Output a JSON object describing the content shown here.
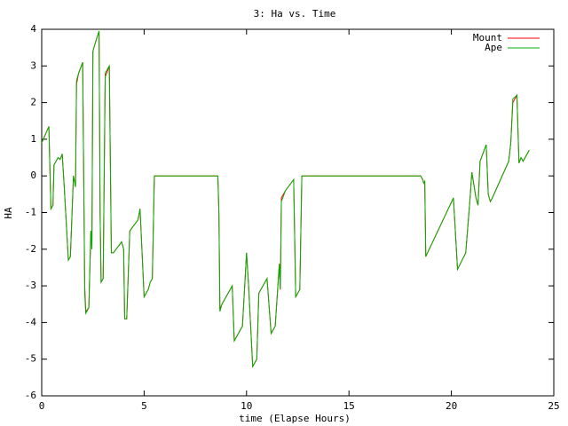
{
  "chart_data": {
    "type": "line",
    "title": "3: Ha vs. Time",
    "x_label": "time (Elapse Hours)",
    "y_label": "HA",
    "x": [
      0,
      0.35,
      0.4,
      0.45,
      0.55,
      0.6,
      0.8,
      0.9,
      1.0,
      1.1,
      1.3,
      1.4,
      1.55,
      1.65,
      1.7,
      1.8,
      2.0,
      2.1,
      2.15,
      2.3,
      2.4,
      2.45,
      2.5,
      2.6,
      2.8,
      2.85,
      2.9,
      3.0,
      3.1,
      3.3,
      3.4,
      3.5,
      3.9,
      4.0,
      4.05,
      4.15,
      4.3,
      4.7,
      4.8,
      5.0,
      5.2,
      5.3,
      5.4,
      5.5,
      8.6,
      8.65,
      8.7,
      8.8,
      9.1,
      9.3,
      9.4,
      9.6,
      9.8,
      10.0,
      10.1,
      10.3,
      10.5,
      10.6,
      11.0,
      11.2,
      11.4,
      11.6,
      11.65,
      11.7,
      11.9,
      12.3,
      12.4,
      12.6,
      12.7,
      18.5,
      18.6,
      18.65,
      18.7,
      18.75,
      20.1,
      20.3,
      20.7,
      20.9,
      21.0,
      21.2,
      21.3,
      21.4,
      21.7,
      21.8,
      21.9,
      22.0,
      22.8,
      22.9,
      23.0,
      23.2,
      23.3,
      23.4,
      23.5,
      23.8
    ],
    "series": [
      {
        "name": "Mount",
        "color": "#ff0000",
        "values": [
          0.9,
          1.35,
          0.2,
          -0.9,
          -0.8,
          0.3,
          0.5,
          0.45,
          0.6,
          -0.3,
          -2.3,
          -2.2,
          0,
          -0.3,
          2.5,
          2.8,
          3.1,
          -3.0,
          -3.7,
          -3.6,
          -1.5,
          -2.0,
          3.4,
          3.6,
          3.95,
          -1.0,
          -2.9,
          -2.8,
          2.7,
          3.0,
          -2.1,
          -2.1,
          -1.8,
          -2.0,
          -3.9,
          -3.9,
          -1.5,
          -1.2,
          -0.9,
          -3.3,
          -3.1,
          -2.9,
          -2.8,
          0,
          0,
          -1.0,
          -3.65,
          -3.5,
          -3.2,
          -3.0,
          -4.5,
          -4.3,
          -4.1,
          -2.1,
          -3.0,
          -5.2,
          -5.0,
          -3.2,
          -2.8,
          -4.3,
          -4.1,
          -2.4,
          -3.1,
          -0.6,
          -0.4,
          -0.1,
          -3.3,
          -3.1,
          0,
          0,
          -0.1,
          -0.2,
          -0.15,
          -2.2,
          -0.6,
          -2.55,
          -2.1,
          -0.7,
          0.1,
          -0.6,
          -0.8,
          0.4,
          0.85,
          -0.5,
          -0.7,
          -0.6,
          0.4,
          0.9,
          2.0,
          2.2,
          0.35,
          0.5,
          0.4,
          0.7
        ]
      },
      {
        "name": "Ape",
        "color": "#00b000",
        "values": [
          0.9,
          1.35,
          0.2,
          -0.9,
          -0.8,
          0.3,
          0.5,
          0.45,
          0.6,
          -0.3,
          -2.3,
          -2.2,
          0,
          -0.3,
          2.6,
          2.8,
          3.1,
          -3.2,
          -3.75,
          -3.6,
          -1.5,
          -2.0,
          3.4,
          3.6,
          3.95,
          -1.0,
          -2.9,
          -2.8,
          2.8,
          3.0,
          -2.1,
          -2.1,
          -1.8,
          -2.0,
          -3.9,
          -3.9,
          -1.5,
          -1.2,
          -0.9,
          -3.3,
          -3.1,
          -2.9,
          -2.8,
          0,
          0,
          -1.0,
          -3.7,
          -3.5,
          -3.2,
          -3.0,
          -4.5,
          -4.3,
          -4.1,
          -2.1,
          -3.0,
          -5.2,
          -5.0,
          -3.2,
          -2.8,
          -4.3,
          -4.1,
          -2.4,
          -3.1,
          -0.7,
          -0.4,
          -0.1,
          -3.3,
          -3.1,
          0,
          0,
          -0.1,
          -0.2,
          -0.15,
          -2.2,
          -0.6,
          -2.55,
          -2.1,
          -0.7,
          0.1,
          -0.6,
          -0.8,
          0.4,
          0.85,
          -0.5,
          -0.7,
          -0.6,
          0.4,
          0.9,
          2.1,
          2.2,
          0.35,
          0.5,
          0.4,
          0.7
        ]
      }
    ],
    "xlim": [
      0,
      25
    ],
    "xticks": [
      0,
      5,
      10,
      15,
      20,
      25
    ],
    "ylim": [
      -6,
      4
    ],
    "yticks": [
      -6,
      -5,
      -4,
      -3,
      -2,
      -1,
      0,
      1,
      2,
      3,
      4
    ],
    "legend": "top-right"
  }
}
